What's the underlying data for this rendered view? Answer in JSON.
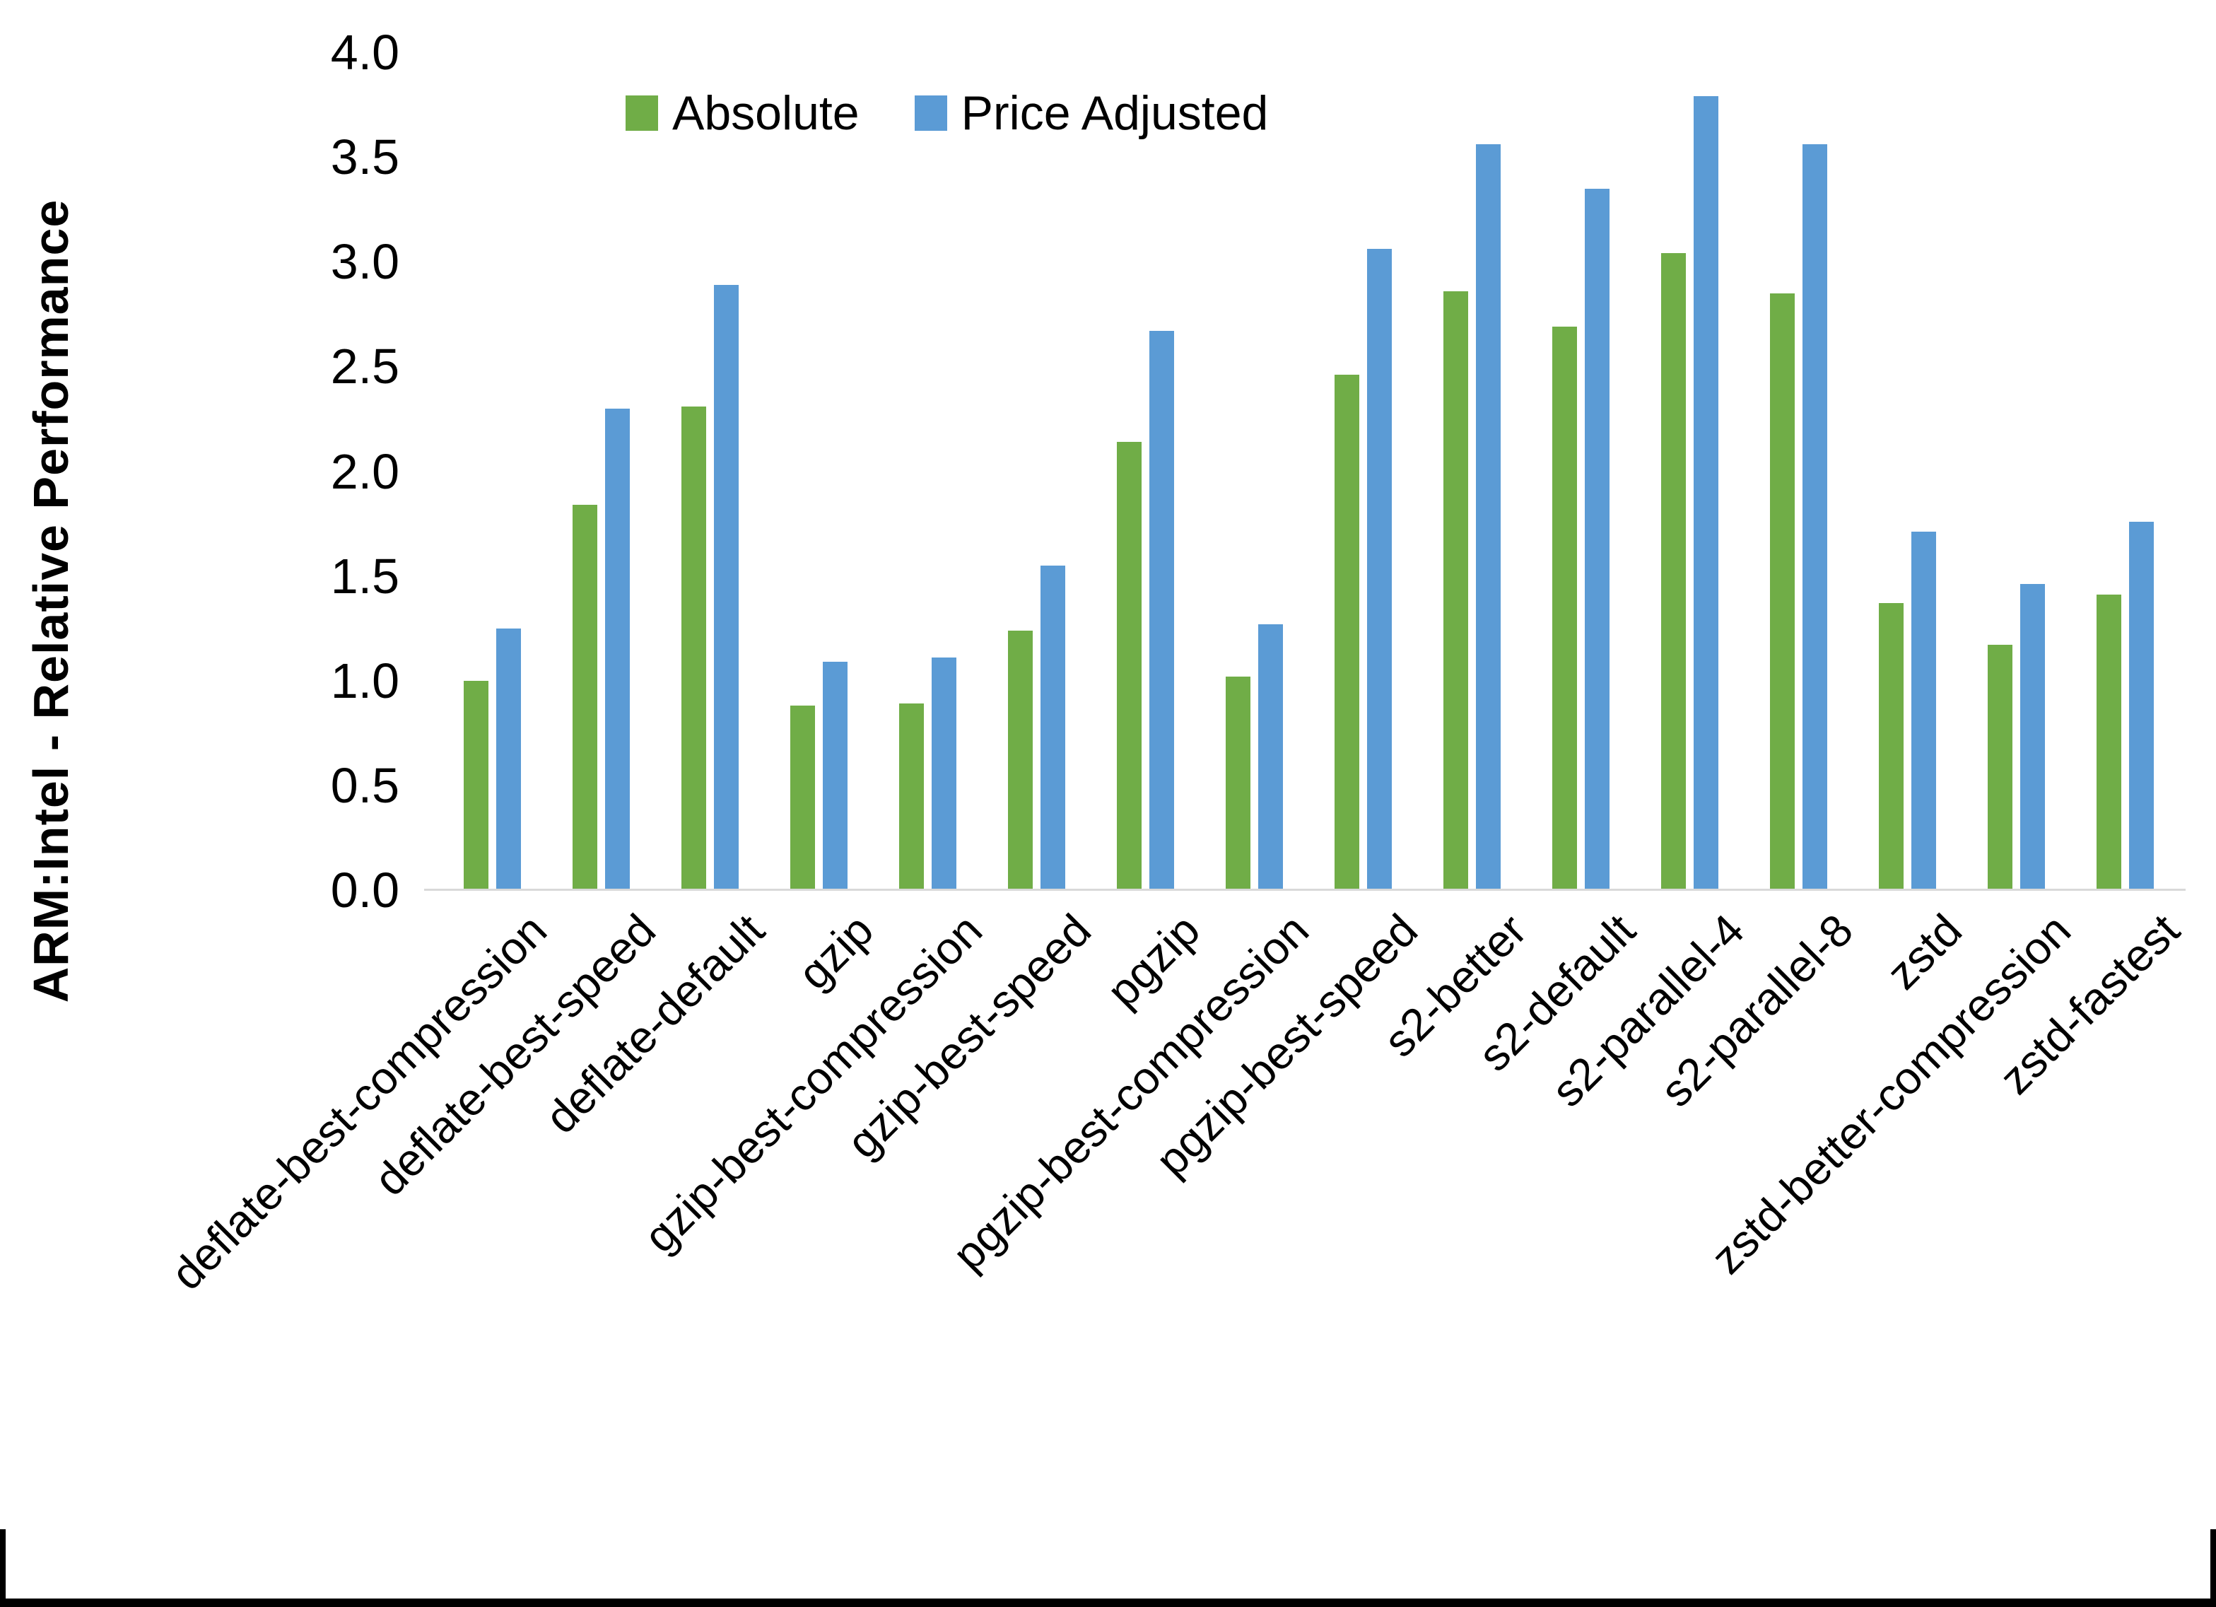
{
  "chart_data": {
    "type": "bar",
    "title": "",
    "ylabel": "ARM:Intel - Relative Performance",
    "xlabel": "",
    "ylim": [
      0.0,
      4.0
    ],
    "y_ticks": [
      0.0,
      0.5,
      1.0,
      1.5,
      2.0,
      2.5,
      3.0,
      3.5,
      4.0
    ],
    "y_tick_labels": [
      "0.0",
      "0.5",
      "1.0",
      "1.5",
      "2.0",
      "2.5",
      "3.0",
      "3.5",
      "4.0"
    ],
    "grid": "off",
    "legend_position": "top-center",
    "categories": [
      "deflate-best-compression",
      "deflate-best-speed",
      "deflate-default",
      "gzip",
      "gzip-best-compression",
      "gzip-best-speed",
      "pgzip",
      "pgzip-best-compression",
      "pgzip-best-speed",
      "s2-better",
      "s2-default",
      "s2-parallel-4",
      "s2-parallel-8",
      "zstd",
      "zstd-better-compression",
      "zstd-fastest"
    ],
    "series": [
      {
        "name": "Absolute",
        "color": "#70AD47",
        "values": [
          1.0,
          1.84,
          2.31,
          0.88,
          0.89,
          1.24,
          2.14,
          1.02,
          2.46,
          2.86,
          2.69,
          3.04,
          2.85,
          1.37,
          1.17,
          1.41
        ]
      },
      {
        "name": "Price Adjusted",
        "color": "#5B9BD5",
        "values": [
          1.25,
          2.3,
          2.89,
          1.09,
          1.11,
          1.55,
          2.67,
          1.27,
          3.06,
          3.56,
          3.35,
          3.79,
          3.56,
          1.71,
          1.46,
          1.76
        ]
      }
    ],
    "axis_line_color": "#D9D9D9",
    "text_color": "#000000",
    "background": "#FFFFFF"
  }
}
